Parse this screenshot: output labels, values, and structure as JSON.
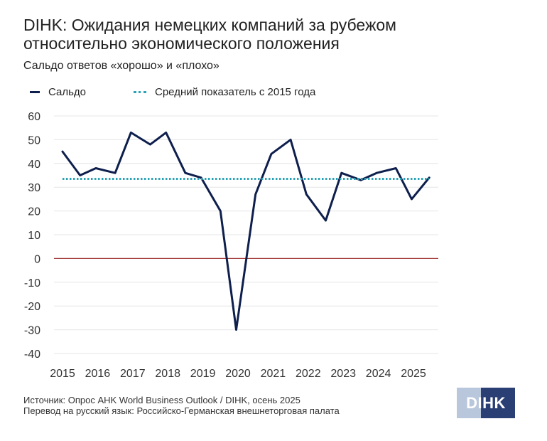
{
  "title_line1": "DIHK: Ожидания немецких компаний за рубежом",
  "title_line2": "относительно экономического положения",
  "subtitle": "Сальдо ответов «хорошо» и «плохо»",
  "legend": {
    "saldo": "Сальдо",
    "average": "Средний показатель с 2015 года"
  },
  "source_line1": "Источник: Опрос AHK World Business Outlook / DIHK, осень 2025",
  "source_line2": "Перевод на русский язык: Российско-Германская внешнеторговая палата",
  "logo_text": "DIHK",
  "colors": {
    "saldo": "#0e1f4d",
    "average": "#29a3b5",
    "zero_line": "#a33a3a",
    "grid": "#e6e6e6",
    "logo_dark": "#2a3f73",
    "logo_light": "#b9c7dc"
  },
  "chart_data": {
    "type": "line",
    "title": "DIHK: Ожидания немецких компаний за рубежом относительно экономического положения",
    "subtitle": "Сальдо ответов «хорошо» и «плохо»",
    "xlabel": "",
    "ylabel": "",
    "x_ticks": [
      "2015",
      "2016",
      "2017",
      "2018",
      "2019",
      "2020",
      "2021",
      "2022",
      "2023",
      "2024",
      "2025"
    ],
    "y_ticks": [
      60,
      50,
      40,
      30,
      20,
      10,
      0,
      -10,
      -20,
      -30,
      -40
    ],
    "ylim": [
      -40,
      60
    ],
    "xlim": [
      2015,
      2025.35
    ],
    "grid": true,
    "legend_position": "top-left",
    "series": [
      {
        "name": "Сальдо",
        "style": "solid",
        "x": [
          2015.0,
          2015.5,
          2015.95,
          2016.5,
          2016.95,
          2017.5,
          2017.95,
          2018.5,
          2018.95,
          2019.5,
          2019.95,
          2020.5,
          2020.95,
          2021.5,
          2021.95,
          2022.5,
          2022.95,
          2023.5,
          2023.95,
          2024.5,
          2024.95,
          2025.45
        ],
        "values": [
          45,
          35,
          38,
          36,
          53,
          48,
          53,
          36,
          34,
          20,
          -30,
          27,
          44,
          50,
          27,
          16,
          36,
          33,
          36,
          38,
          25,
          34
        ]
      },
      {
        "name": "Средний показатель с 2015 года",
        "style": "dotted",
        "x": [
          2015.0,
          2025.45
        ],
        "values": [
          33.5,
          33.5
        ]
      }
    ],
    "reference_lines": [
      {
        "y": 0,
        "label": ""
      }
    ]
  }
}
